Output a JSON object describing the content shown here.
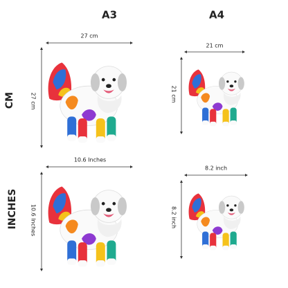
{
  "columns": [
    "A3",
    "A4"
  ],
  "rows": [
    "CM",
    "INCHES"
  ],
  "cells": [
    [
      {
        "width": "27 cm",
        "height": "27 cm"
      },
      {
        "width": "21 cm",
        "height": "21 cm"
      }
    ],
    [
      {
        "width": "10.6 Inches",
        "height": "10.6 Inches"
      },
      {
        "width": "8.2 inch",
        "height": "8.2 inch"
      }
    ]
  ]
}
